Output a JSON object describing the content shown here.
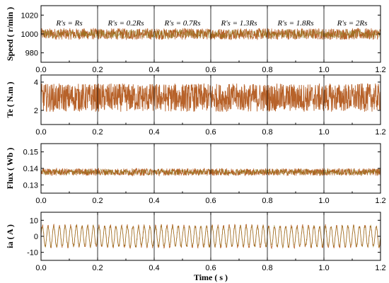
{
  "chart_data": [
    {
      "type": "line",
      "ylabel": "Speed ( r/min )",
      "xlabel": "",
      "xlim": [
        0.0,
        1.2
      ],
      "ylim": [
        970,
        1030
      ],
      "xticks": [
        "0.0",
        "0.2",
        "0.4",
        "0.6",
        "0.8",
        "1.0",
        "1.2"
      ],
      "yticks": [
        "980",
        "1000",
        "1020"
      ],
      "ytick_values": [
        980,
        1000,
        1020
      ],
      "series": [
        {
          "center": 1000,
          "amplitude": 6
        }
      ],
      "vlines": [
        0.2,
        0.4,
        0.6,
        0.8,
        1.0
      ],
      "annotations": [
        {
          "x": 0.1,
          "text": "R's = Rs"
        },
        {
          "x": 0.3,
          "text": "R's = 0.2Rs"
        },
        {
          "x": 0.5,
          "text": "R's = 0.7Rs"
        },
        {
          "x": 0.7,
          "text": "R's = 1.3Rs"
        },
        {
          "x": 0.9,
          "text": "R's = 1.8Rs"
        },
        {
          "x": 1.1,
          "text": "R's = 2Rs"
        }
      ]
    },
    {
      "type": "line",
      "ylabel": "Te ( N.m )",
      "xlabel": "",
      "xlim": [
        0.0,
        1.2
      ],
      "ylim": [
        1,
        4.5
      ],
      "xticks": [
        "0.0",
        "0.2",
        "0.4",
        "0.6",
        "0.8",
        "1.0",
        "1.2"
      ],
      "yticks": [
        "2",
        "4"
      ],
      "ytick_values": [
        2,
        4
      ],
      "series": [
        {
          "center": 2.9,
          "amplitude": 1.0
        }
      ],
      "vlines": [
        0.2,
        0.4,
        0.6,
        0.8,
        1.0
      ]
    },
    {
      "type": "line",
      "ylabel": "Flux ( Wb )",
      "xlabel": "",
      "xlim": [
        0.0,
        1.2
      ],
      "ylim": [
        0.125,
        0.155
      ],
      "xticks": [
        "0.0",
        "0.2",
        "0.4",
        "0.6",
        "0.8",
        "1.0",
        "1.2"
      ],
      "yticks": [
        "0.13",
        "0.14",
        "0.15"
      ],
      "ytick_values": [
        0.13,
        0.14,
        0.15
      ],
      "series": [
        {
          "center": 0.1378,
          "amplitude": 0.0022
        }
      ],
      "vlines": [
        0.2,
        0.4,
        0.6,
        0.8,
        1.0
      ]
    },
    {
      "type": "line",
      "ylabel": "ia ( A )",
      "xlabel": "Time ( s )",
      "xlim": [
        0.0,
        1.2
      ],
      "ylim": [
        -15,
        15
      ],
      "xticks": [
        "0.0",
        "0.2",
        "0.4",
        "0.6",
        "0.8",
        "1.0",
        "1.2"
      ],
      "yticks": [
        "-10",
        "0",
        "10"
      ],
      "ytick_values": [
        -10,
        0,
        10
      ],
      "series": [
        {
          "center": 0,
          "amplitude": 6.5,
          "frequency_hz": 50
        }
      ],
      "vlines": [
        0.2,
        0.4,
        0.6,
        0.8,
        1.0
      ]
    }
  ],
  "colors": {
    "signal": "#b35a1f",
    "signal_alt": "#8a7a1a"
  }
}
